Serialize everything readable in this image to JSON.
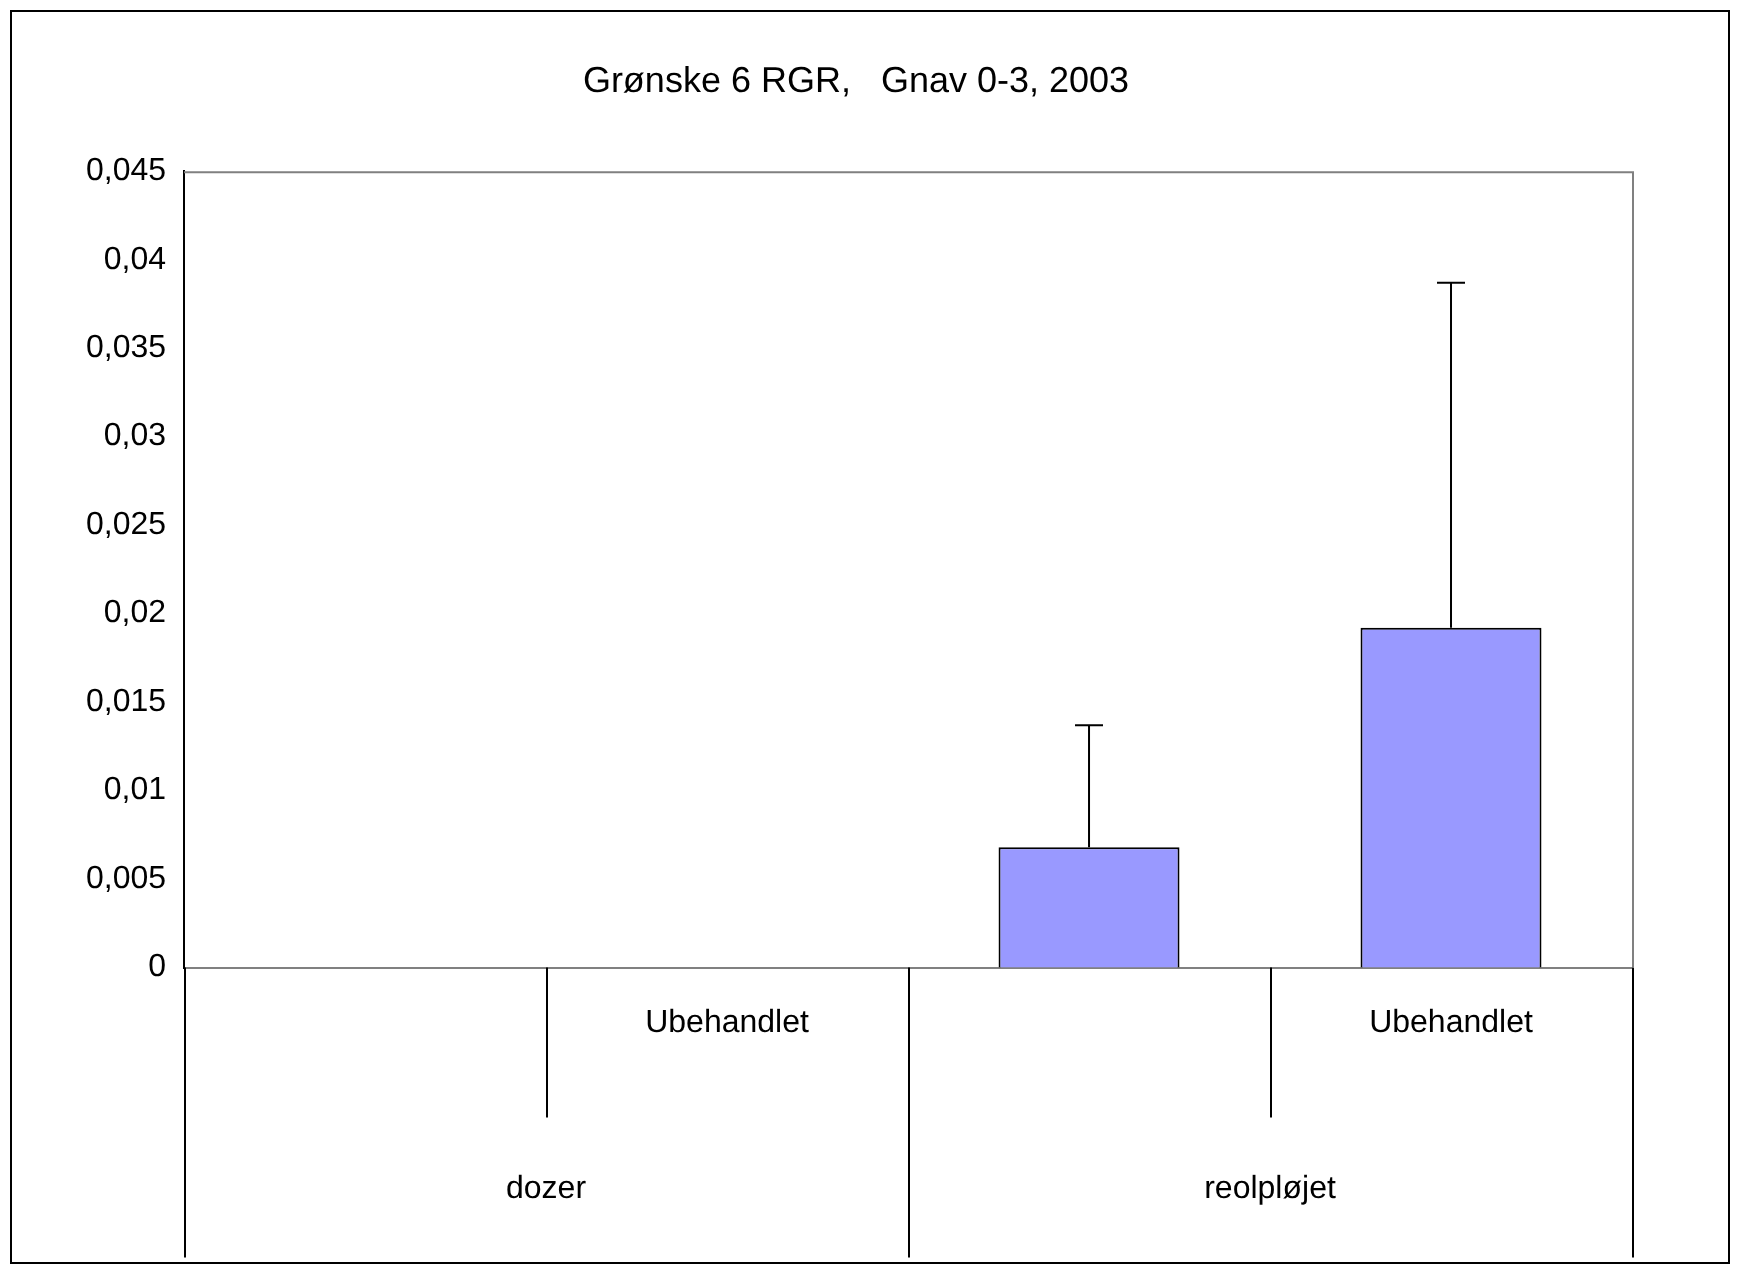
{
  "chart_data": {
    "type": "bar",
    "title": "Grønske 6 RGR,   Gnav 0-3, 2003",
    "categories": [
      null,
      "Ubehandlet",
      null,
      "Ubehandlet"
    ],
    "values": [
      0,
      0,
      0.0068,
      0.0192
    ],
    "errors": [
      null,
      null,
      [
        0.0068,
        0.0137
      ],
      [
        0.0192,
        0.0387
      ]
    ],
    "color": "#9999ff",
    "ylim": [
      0,
      0.045
    ],
    "yticks": [
      {
        "value": 0,
        "label": "0"
      },
      {
        "value": 0.005,
        "label": "0,005"
      },
      {
        "value": 0.01,
        "label": "0,01"
      },
      {
        "value": 0.015,
        "label": "0,015"
      },
      {
        "value": 0.02,
        "label": "0,02"
      },
      {
        "value": 0.025,
        "label": "0,025"
      },
      {
        "value": 0.03,
        "label": "0,03"
      },
      {
        "value": 0.035,
        "label": "0,035"
      },
      {
        "value": 0.04,
        "label": "0,04"
      },
      {
        "value": 0.045,
        "label": "0,045"
      }
    ],
    "annotations": [
      "dozer",
      "reolpløjet"
    ],
    "grid": false,
    "legend": false
  }
}
